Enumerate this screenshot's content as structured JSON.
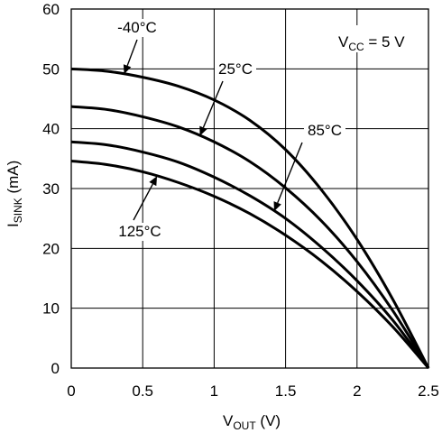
{
  "chart_data": {
    "type": "line",
    "xlabel": {
      "main": "V",
      "sub": "OUT",
      "unit": " (V)"
    },
    "ylabel": {
      "main": "I",
      "sub": "SINK",
      "unit": " (mA)"
    },
    "xlim": [
      0,
      2.5
    ],
    "ylim": [
      0,
      60
    ],
    "xticks": [
      "0",
      "0.5",
      "1",
      "1.5",
      "2",
      "2.5"
    ],
    "yticks": [
      "0",
      "10",
      "20",
      "30",
      "40",
      "50",
      "60"
    ],
    "grid": true,
    "annotation": {
      "main": "V",
      "sub": "CC",
      "rest": " = 5 V"
    },
    "series": [
      {
        "name": "-40°C",
        "x": [
          0,
          0.25,
          0.5,
          0.75,
          1.0,
          1.25,
          1.5,
          1.75,
          2.0,
          2.25,
          2.5
        ],
        "values": [
          50.0,
          49.6,
          48.6,
          47.1,
          44.8,
          41.4,
          36.5,
          29.8,
          21.5,
          11.5,
          0
        ]
      },
      {
        "name": "25°C",
        "x": [
          0,
          0.25,
          0.5,
          0.75,
          1.0,
          1.25,
          1.5,
          1.75,
          2.0,
          2.25,
          2.5
        ],
        "values": [
          43.7,
          43.2,
          42.0,
          40.3,
          37.8,
          34.5,
          30.1,
          24.6,
          17.8,
          9.6,
          0
        ]
      },
      {
        "name": "85°C",
        "x": [
          0,
          0.25,
          0.5,
          0.75,
          1.0,
          1.25,
          1.5,
          1.75,
          2.0,
          2.25,
          2.5
        ],
        "values": [
          37.8,
          37.3,
          36.1,
          34.4,
          31.9,
          28.8,
          25.0,
          20.2,
          14.6,
          8.0,
          0
        ]
      },
      {
        "name": "125°C",
        "x": [
          0,
          0.25,
          0.5,
          0.75,
          1.0,
          1.25,
          1.5,
          1.75,
          2.0,
          2.25,
          2.5
        ],
        "values": [
          34.6,
          34.0,
          32.8,
          31.0,
          28.7,
          25.8,
          22.2,
          17.9,
          12.8,
          6.9,
          0
        ]
      }
    ]
  }
}
